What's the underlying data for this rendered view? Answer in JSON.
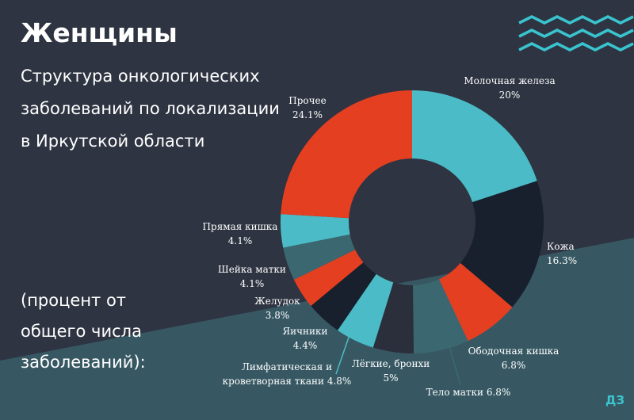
{
  "header": {
    "title": "Женщины",
    "subtitle": "Структура онкологических заболеваний по локализации в Иркутской области",
    "note": "(процент от общего числа заболеваний):"
  },
  "logo": {
    "text": "ДЗ"
  },
  "colors": {
    "background": "#2e3441",
    "band": "#375863",
    "teal": "#4bbcc7",
    "dark": "#17202c",
    "red": "#e53f21",
    "slate": "#3b6870",
    "charcoal": "#2a2f3b",
    "wave": "#3ac4cf"
  },
  "chart_data": {
    "type": "pie",
    "donut": true,
    "slices": [
      {
        "label": "Молочная железа",
        "value_text": "20%",
        "value": 20,
        "color": "#4bbcc7"
      },
      {
        "label": "Кожа",
        "value_text": "16.3%",
        "value": 16.3,
        "color": "#17202c"
      },
      {
        "label": "Ободочная кишка",
        "value_text": "6.8%",
        "value": 6.8,
        "color": "#e53f21"
      },
      {
        "label": "Тело матки",
        "value_text": "6.8%",
        "value": 6.8,
        "color": "#3b6870"
      },
      {
        "label": "Лёгкие, бронхи",
        "value_text": "5%",
        "value": 5,
        "color": "#2a2f3b"
      },
      {
        "label": "Лимфатическая и кроветворная ткани",
        "value_text": "4.8%",
        "value": 4.8,
        "color": "#4bbcc7"
      },
      {
        "label": "Яичники",
        "value_text": "4.4%",
        "value": 4.4,
        "color": "#17202c"
      },
      {
        "label": "Желудок",
        "value_text": "3.8%",
        "value": 3.8,
        "color": "#e53f21"
      },
      {
        "label": "Шейка матки",
        "value_text": "4.1%",
        "value": 4.1,
        "color": "#3b6870"
      },
      {
        "label": "Прямая кишка",
        "value_text": "4.1%",
        "value": 4.1,
        "color": "#4bbcc7"
      },
      {
        "label": "Прочее",
        "value_text": "24.1%",
        "value": 24.1,
        "color": "#e53f21"
      }
    ]
  }
}
